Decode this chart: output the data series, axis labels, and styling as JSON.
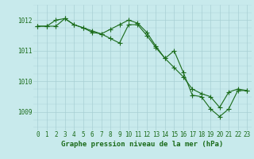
{
  "line1_x": [
    0,
    1,
    2,
    3,
    4,
    5,
    6,
    7,
    8,
    9,
    10,
    11,
    12,
    13,
    14,
    15,
    16,
    17,
    18,
    19,
    20,
    21,
    22,
    23
  ],
  "line1_y": [
    1011.8,
    1011.8,
    1012.0,
    1012.05,
    1011.85,
    1011.75,
    1011.65,
    1011.55,
    1011.4,
    1011.25,
    1011.85,
    1011.85,
    1011.5,
    1011.1,
    1010.75,
    1010.45,
    1010.15,
    1009.75,
    1009.6,
    1009.5,
    1009.15,
    1009.65,
    1009.75,
    1009.7
  ],
  "line2_x": [
    0,
    1,
    2,
    3,
    4,
    5,
    6,
    7,
    8,
    9,
    10,
    11,
    12,
    13,
    14,
    15,
    16,
    17,
    18,
    19,
    20,
    21,
    22,
    23
  ],
  "line2_y": [
    1011.8,
    1011.8,
    1011.8,
    1012.05,
    1011.85,
    1011.75,
    1011.6,
    1011.55,
    1011.7,
    1011.85,
    1012.0,
    1011.9,
    1011.6,
    1011.15,
    1010.75,
    1011.0,
    1010.3,
    1009.55,
    1009.5,
    1009.1,
    1008.85,
    1009.1,
    1009.7,
    1009.7
  ],
  "line_color": "#1a6b1a",
  "bg_color": "#c8eaec",
  "grid_color": "#a8cfd4",
  "xlabel": "Graphe pression niveau de la mer (hPa)",
  "xlabel_color": "#1a6b1a",
  "xlabel_fontsize": 6.5,
  "tick_fontsize": 5.5,
  "ytick_labels": [
    1009,
    1010,
    1011,
    1012
  ],
  "ylim": [
    1008.4,
    1012.5
  ],
  "xlim": [
    -0.5,
    23.5
  ],
  "xtick_labels": [
    "0",
    "1",
    "2",
    "3",
    "4",
    "5",
    "6",
    "7",
    "8",
    "9",
    "10",
    "11",
    "12",
    "13",
    "14",
    "15",
    "16",
    "17",
    "18",
    "19",
    "20",
    "21",
    "22",
    "23"
  ],
  "marker": "+",
  "markersize": 4,
  "linewidth": 0.8
}
